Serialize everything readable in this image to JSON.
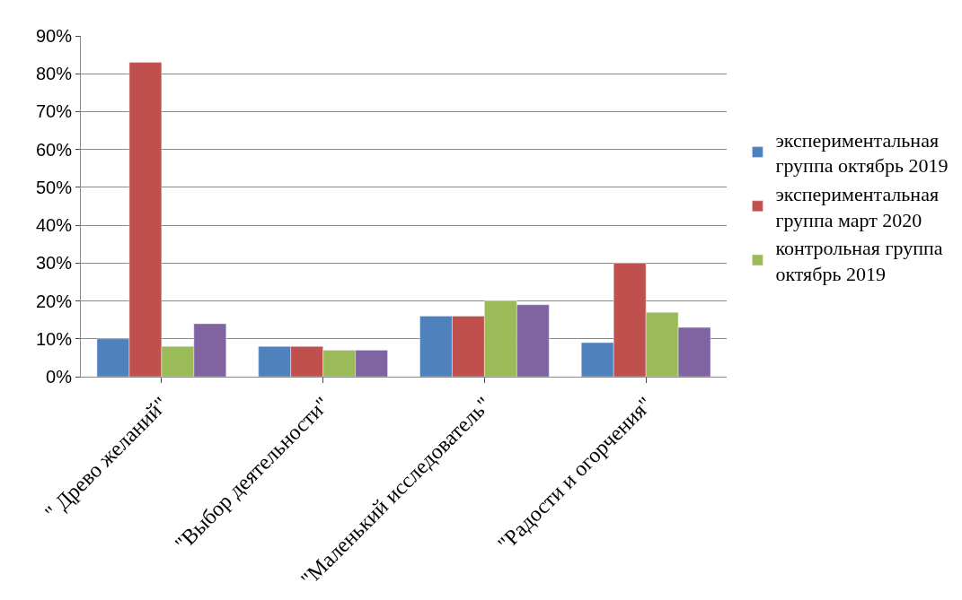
{
  "chart_data": {
    "type": "bar",
    "categories": [
      "\" Древо желаний\"",
      "\"Выбор деятельности\"",
      "\"Маленький исследователь\"",
      "\"Радости и огорчения\""
    ],
    "series": [
      {
        "name": "экспериментальная группа октябрь 2019",
        "color": "#4f81bd",
        "values": [
          10,
          8,
          16,
          9
        ]
      },
      {
        "name": "экспериментальная группа март 2020",
        "color": "#c0504d",
        "values": [
          83,
          8,
          16,
          30
        ]
      },
      {
        "name": "контрольная группа октябрь 2019",
        "color": "#9bbb59",
        "values": [
          8,
          7,
          20,
          17
        ]
      },
      {
        "color": "#8064a2",
        "values": [
          14,
          7,
          19,
          13
        ]
      }
    ],
    "ylim": [
      0,
      90
    ],
    "yticks": [
      {
        "value": 0,
        "label": "0%"
      },
      {
        "value": 10,
        "label": "10%"
      },
      {
        "value": 20,
        "label": "20%"
      },
      {
        "value": 30,
        "label": "30%"
      },
      {
        "value": 40,
        "label": "40%"
      },
      {
        "value": 50,
        "label": "50%"
      },
      {
        "value": 60,
        "label": "60%"
      },
      {
        "value": 70,
        "label": "70%"
      },
      {
        "value": 80,
        "label": "80%"
      },
      {
        "value": 90,
        "label": "90%"
      }
    ],
    "grid": "y",
    "legend": "right"
  }
}
